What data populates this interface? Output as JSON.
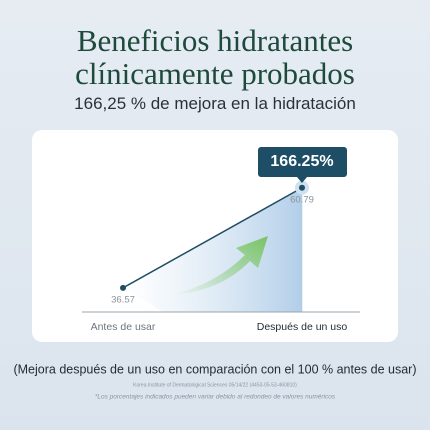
{
  "chart_data": {
    "type": "line",
    "title": "Beneficios hidratantes clínicamente probados",
    "subtitle": "166,25 % de mejora en la hidratación",
    "categories": [
      "Antes de usar",
      "Después de un uso"
    ],
    "values": [
      36.57,
      60.79
    ],
    "value_labels": [
      "36.57",
      "60.79"
    ],
    "color": "#1f4d63",
    "ylim": [
      30,
      75
    ],
    "annotation": "166.25%",
    "note": "(Mejora después de un uso en comparación con el 100 % antes de usar)",
    "source": "Korea Institute of Dermatological Sciences 05/14/22 (4453-05-53-460810)",
    "disclaimer": "*Los porcentajes indicados pueden variar debido al redondeo de valores numéricos"
  }
}
